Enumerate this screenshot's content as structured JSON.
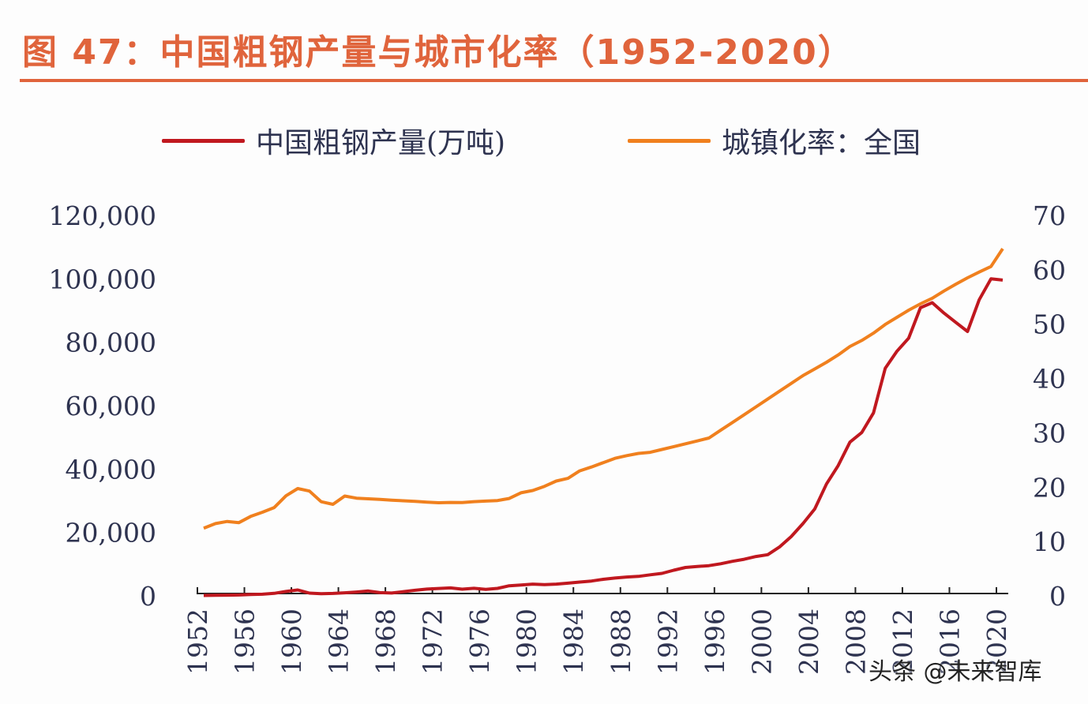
{
  "title": "图 47：中国粗钢产量与城市化率（1952-2020）",
  "watermark": "头条 @未来智库",
  "colors": {
    "title": "#e0643c",
    "steel": "#c0181f",
    "urbanization": "#f0801e",
    "axis_text": "#2e3350"
  },
  "chart_data": {
    "type": "line",
    "title": "图 47：中国粗钢产量与城市化率（1952-2020）",
    "legend_placement": "top",
    "grid": false,
    "x": [
      1952,
      1953,
      1954,
      1955,
      1956,
      1957,
      1958,
      1959,
      1960,
      1961,
      1962,
      1963,
      1964,
      1965,
      1966,
      1967,
      1968,
      1969,
      1970,
      1971,
      1972,
      1973,
      1974,
      1975,
      1976,
      1977,
      1978,
      1979,
      1980,
      1981,
      1982,
      1983,
      1984,
      1985,
      1986,
      1987,
      1988,
      1989,
      1990,
      1991,
      1992,
      1993,
      1994,
      1995,
      1996,
      1997,
      1998,
      1999,
      2000,
      2001,
      2002,
      2003,
      2004,
      2005,
      2006,
      2007,
      2008,
      2009,
      2010,
      2011,
      2012,
      2013,
      2014,
      2015,
      2016,
      2017,
      2018,
      2019,
      2020
    ],
    "x_tick_labels": [
      "1952",
      "1956",
      "1960",
      "1964",
      "1968",
      "1972",
      "1976",
      "1980",
      "1984",
      "1988",
      "1992",
      "1996",
      "2000",
      "2004",
      "2008",
      "2012",
      "2016",
      "2020"
    ],
    "y_left": {
      "range": [
        0,
        120000
      ],
      "tick_labels": [
        "0",
        "20,000",
        "40,000",
        "60,000",
        "80,000",
        "100,000",
        "120,000"
      ]
    },
    "y_right": {
      "range": [
        0,
        70
      ],
      "tick_labels": [
        "0",
        "10",
        "20",
        "30",
        "40",
        "50",
        "60",
        "70"
      ]
    },
    "series": [
      {
        "name": "中国粗钢产量(万吨)",
        "axis": "left",
        "values": [
          135,
          177,
          223,
          285,
          447,
          535,
          800,
          1387,
          1866,
          870,
          667,
          762,
          964,
          1223,
          1532,
          1029,
          904,
          1333,
          1779,
          2132,
          2338,
          2522,
          2112,
          2390,
          2046,
          2374,
          3178,
          3448,
          3712,
          3560,
          3716,
          4002,
          4347,
          4679,
          5220,
          5628,
          5943,
          6159,
          6635,
          7100,
          8094,
          8956,
          9261,
          9536,
          10124,
          10894,
          11559,
          12426,
          13000,
          15400,
          18700,
          22800,
          27400,
          35300,
          41100,
          48500,
          51500,
          57700,
          71800,
          77200,
          81300,
          90900,
          92500,
          89200,
          86300,
          83400,
          93400,
          100000,
          99600
        ]
      },
      {
        "name": "城镇化率：全国",
        "axis": "right",
        "values": [
          12.46,
          13.31,
          13.69,
          13.48,
          14.62,
          15.39,
          16.25,
          18.41,
          19.75,
          19.29,
          17.33,
          16.84,
          18.37,
          17.98,
          17.86,
          17.74,
          17.62,
          17.5,
          17.38,
          17.26,
          17.13,
          17.2,
          17.16,
          17.34,
          17.44,
          17.55,
          17.92,
          18.96,
          19.39,
          20.16,
          21.13,
          21.62,
          23.01,
          23.71,
          24.52,
          25.32,
          25.81,
          26.21,
          26.41,
          26.94,
          27.46,
          27.99,
          28.51,
          29.04,
          30.48,
          31.91,
          33.35,
          34.78,
          36.22,
          37.66,
          39.09,
          40.53,
          41.76,
          42.99,
          44.34,
          45.89,
          46.99,
          48.34,
          49.95,
          51.27,
          52.57,
          53.73,
          54.77,
          56.1,
          57.35,
          58.52,
          59.58,
          60.6,
          63.89
        ]
      }
    ]
  }
}
